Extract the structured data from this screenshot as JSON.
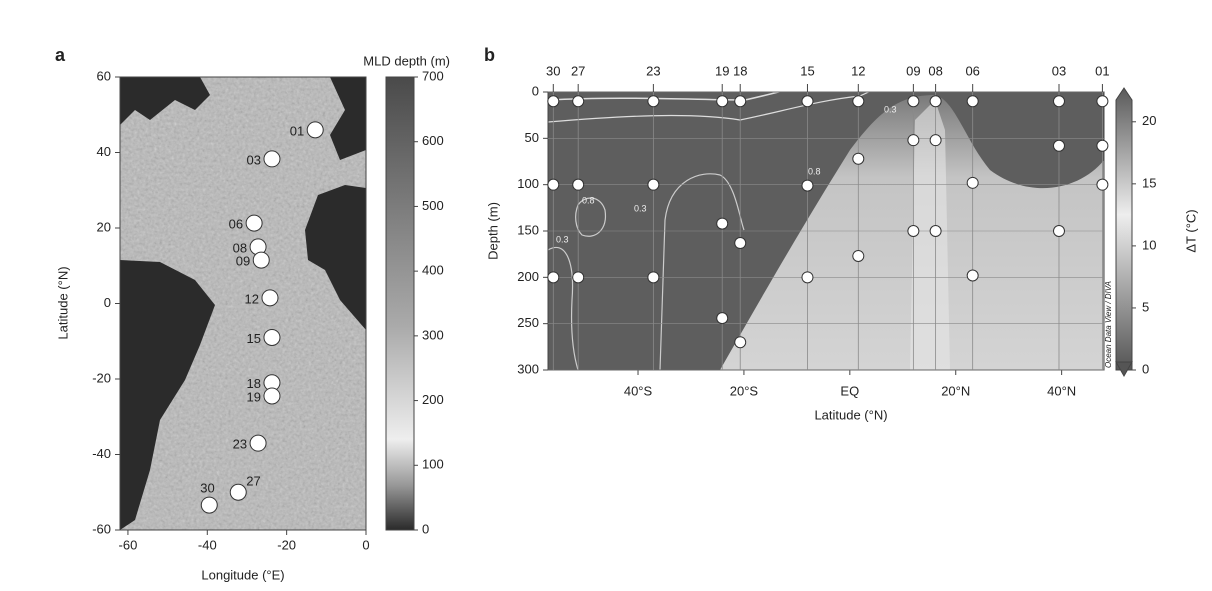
{
  "chart_data": [
    {
      "type": "station-map",
      "panel_label": "a",
      "xlabel": "Longitude (°E)",
      "ylabel": "Latitude (°N)",
      "xlim": [
        -62,
        0
      ],
      "ylim": [
        -60,
        60
      ],
      "xticks": [
        -60,
        -40,
        -20,
        0
      ],
      "yticks": [
        -60,
        -40,
        -20,
        0,
        20,
        40,
        60
      ],
      "points": {
        "labels": [
          "01",
          "03",
          "06",
          "08",
          "09",
          "12",
          "15",
          "18",
          "19",
          "23",
          "27",
          "30"
        ],
        "x": [
          -12.8,
          -23.7,
          -28.2,
          -27.2,
          -26.4,
          -24.2,
          -23.7,
          -23.7,
          -23.7,
          -27.2,
          -32.2,
          -39.5
        ],
        "y": [
          46,
          38.3,
          21.3,
          15,
          11.5,
          1.5,
          -9,
          -21,
          -24.5,
          -37,
          -50,
          -53.4
        ]
      },
      "colorbar": {
        "label": "MLD depth (m)",
        "lim": [
          0,
          700
        ],
        "ticks": [
          0,
          100,
          200,
          300,
          400,
          500,
          600,
          700
        ]
      }
    },
    {
      "type": "section",
      "panel_label": "b",
      "xlabel": "Latitude (°N)",
      "ylabel": "Depth (m)",
      "xlim": [
        -57,
        48
      ],
      "ylim": [
        0,
        300
      ],
      "y_inverted": true,
      "xticks": [
        {
          "value": -40,
          "label": "40°S"
        },
        {
          "value": -20,
          "label": "20°S"
        },
        {
          "value": 0,
          "label": "EQ"
        },
        {
          "value": 20,
          "label": "20°N"
        },
        {
          "value": 40,
          "label": "40°N"
        }
      ],
      "yticks": [
        0,
        50,
        100,
        150,
        200,
        250,
        300
      ],
      "stations": {
        "labels": [
          "30",
          "27",
          "23",
          "19",
          "18",
          "15",
          "12",
          "09",
          "08",
          "06",
          "03",
          "01"
        ],
        "x": [
          -56,
          -51.3,
          -37.1,
          -24.1,
          -20.7,
          -8,
          1.6,
          12,
          16.2,
          23.2,
          39.5,
          47.7
        ]
      },
      "samples": {
        "x": [
          -56,
          -56,
          -56,
          -51.3,
          -51.3,
          -51.3,
          -37.1,
          -37.1,
          -37.1,
          -24.1,
          -24.1,
          -24.1,
          -20.7,
          -20.7,
          -20.7,
          -8,
          -8,
          -8,
          1.6,
          1.6,
          1.6,
          12,
          12,
          12,
          16.2,
          16.2,
          16.2,
          23.2,
          23.2,
          23.2,
          39.5,
          39.5,
          39.5,
          47.7,
          47.7,
          47.7
        ],
        "y": [
          10,
          100,
          200,
          10,
          100,
          200,
          10,
          100,
          200,
          10,
          142,
          244,
          10,
          163,
          270,
          10,
          101,
          200,
          10,
          72,
          177,
          10,
          52,
          150,
          10,
          52,
          150,
          10,
          98,
          198,
          10,
          58,
          150,
          10,
          58,
          100
        ]
      },
      "contour_labels": [
        "0.3",
        "0.8",
        "0.8",
        "0.3",
        "0.3"
      ],
      "credit": "Ocean Data View / DIVA",
      "colorbar": {
        "label": "ΔT (°C)",
        "lim": [
          0,
          22.4
        ],
        "ticks": [
          0,
          5,
          10,
          15,
          20
        ]
      }
    }
  ]
}
